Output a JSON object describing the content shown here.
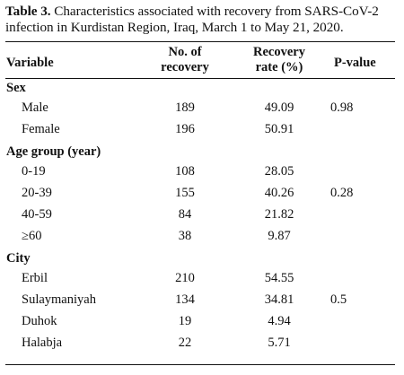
{
  "caption": {
    "label": "Table 3.",
    "text": "Characteristics associated with recovery from SARS-CoV-2 infection in Kurdistan Region, Iraq, March 1 to May 21, 2020."
  },
  "headers": {
    "variable": "Variable",
    "no_line1": "No. of",
    "no_line2": "recovery",
    "rate_line1": "Recovery",
    "rate_line2": "rate (%)",
    "pvalue": "P-value"
  },
  "groups": [
    {
      "title": "Sex",
      "rows": [
        {
          "label": "Male",
          "no": "189",
          "rate": "49.09",
          "p": "0.98"
        },
        {
          "label": "Female",
          "no": "196",
          "rate": "50.91",
          "p": ""
        }
      ]
    },
    {
      "title": "Age group (year)",
      "rows": [
        {
          "label": "0-19",
          "no": "108",
          "rate": "28.05",
          "p": ""
        },
        {
          "label": "20-39",
          "no": "155",
          "rate": "40.26",
          "p": "0.28"
        },
        {
          "label": "40-59",
          "no": "84",
          "rate": "21.82",
          "p": ""
        },
        {
          "label": "≥60",
          "no": "38",
          "rate": "9.87",
          "p": ""
        }
      ]
    },
    {
      "title": "City",
      "rows": [
        {
          "label": "Erbil",
          "no": "210",
          "rate": "54.55",
          "p": ""
        },
        {
          "label": "Sulaymaniyah",
          "no": "134",
          "rate": "34.81",
          "p": "0.5"
        },
        {
          "label": "Duhok",
          "no": "19",
          "rate": "4.94",
          "p": ""
        },
        {
          "label": "Halabja",
          "no": "22",
          "rate": "5.71",
          "p": ""
        }
      ]
    }
  ]
}
